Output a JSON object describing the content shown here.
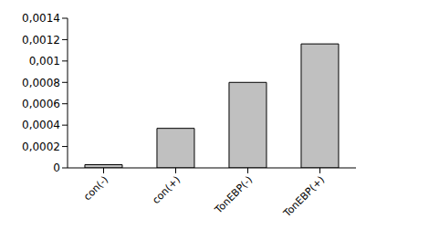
{
  "chart_data": {
    "type": "bar",
    "categories": [
      "con(-)",
      "con(+)",
      "TonEBP(-)",
      "TonEBP(+)"
    ],
    "values": [
      3e-05,
      0.00037,
      0.0008,
      0.00116
    ],
    "color": "#c0c0c0",
    "ylim": [
      0,
      0.0014
    ],
    "yticks": [
      0,
      {
        "value": 0.0002,
        "label": "0,0002"
      },
      {
        "value": 0.0004,
        "label": "0,0004"
      },
      {
        "value": 0.0006,
        "label": "0,0006"
      },
      {
        "value": 0.0008,
        "label": "0,0008"
      },
      {
        "value": 0.001,
        "label": "0,001"
      },
      {
        "value": 0.0012,
        "label": "0,0012"
      },
      {
        "value": 0.0014,
        "label": "0,0014"
      }
    ],
    "grid": false
  }
}
